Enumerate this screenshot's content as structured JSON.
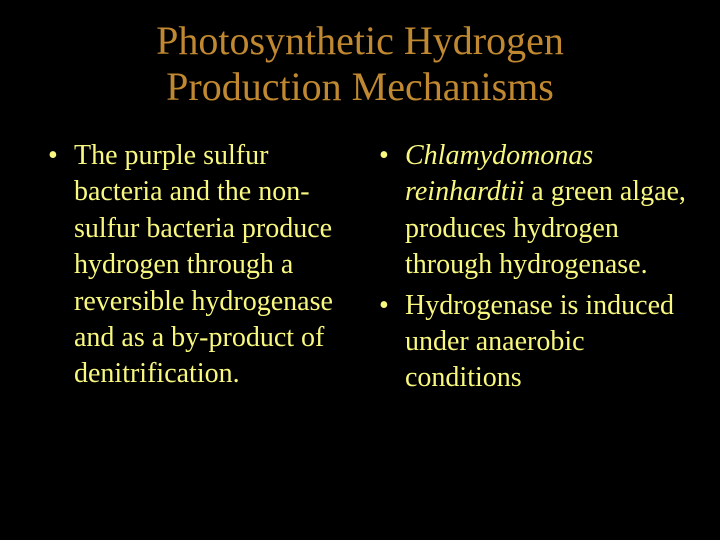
{
  "colors": {
    "background": "#000000",
    "title": "#c08830",
    "body": "#f8f880"
  },
  "title": {
    "line1": "Photosynthetic Hydrogen",
    "line2": "Production Mechanisms"
  },
  "leftColumn": {
    "items": [
      {
        "bullet": "•",
        "text": "The purple sulfur bacteria and the non-sulfur bacteria produce hydrogen through a reversible hydrogenase and as a by-product of denitrification."
      }
    ]
  },
  "rightColumn": {
    "items": [
      {
        "bullet": "•",
        "italicPart": "Chlamydomonas reinhardtii",
        "plainPart": " a green algae, produces hydrogen through hydrogenase."
      },
      {
        "bullet": "•",
        "text": "Hydrogenase is induced under anaerobic conditions"
      }
    ]
  }
}
